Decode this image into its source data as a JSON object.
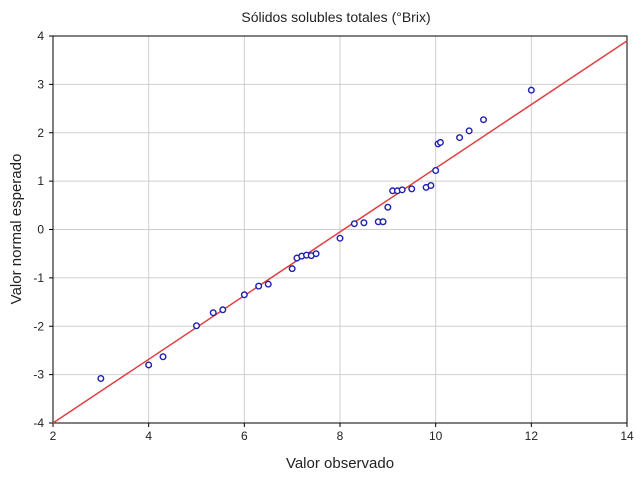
{
  "chart_data": {
    "type": "scatter",
    "title": "Sólidos solubles totales (°Brix)",
    "xlabel": "Valor observado",
    "ylabel": "Valor normal esperado",
    "xlim": [
      2,
      14
    ],
    "ylim": [
      -4,
      4
    ],
    "x_ticks": [
      2,
      4,
      6,
      8,
      10,
      12,
      14
    ],
    "y_ticks": [
      -4,
      -3,
      -2,
      -1,
      0,
      1,
      2,
      3,
      4
    ],
    "grid": true,
    "point_color": "#1f1fb0",
    "line_color": "#e04040",
    "reference_line": [
      [
        2,
        -4.0
      ],
      [
        14,
        3.9
      ]
    ],
    "points": [
      [
        3.0,
        -3.08
      ],
      [
        4.0,
        -2.8
      ],
      [
        4.3,
        -2.63
      ],
      [
        5.0,
        -1.99
      ],
      [
        5.35,
        -1.72
      ],
      [
        5.55,
        -1.66
      ],
      [
        6.0,
        -1.35
      ],
      [
        6.3,
        -1.17
      ],
      [
        6.5,
        -1.13
      ],
      [
        7.0,
        -0.81
      ],
      [
        7.1,
        -0.59
      ],
      [
        7.2,
        -0.55
      ],
      [
        7.3,
        -0.53
      ],
      [
        7.4,
        -0.54
      ],
      [
        7.5,
        -0.5
      ],
      [
        8.0,
        -0.18
      ],
      [
        8.3,
        0.12
      ],
      [
        8.5,
        0.14
      ],
      [
        8.8,
        0.16
      ],
      [
        8.9,
        0.16
      ],
      [
        9.0,
        0.46
      ],
      [
        9.1,
        0.8
      ],
      [
        9.2,
        0.8
      ],
      [
        9.3,
        0.82
      ],
      [
        9.5,
        0.84
      ],
      [
        9.8,
        0.87
      ],
      [
        9.9,
        0.91
      ],
      [
        10.0,
        1.22
      ],
      [
        10.05,
        1.77
      ],
      [
        10.1,
        1.8
      ],
      [
        10.5,
        1.9
      ],
      [
        10.7,
        2.04
      ],
      [
        11.0,
        2.27
      ],
      [
        12.0,
        2.88
      ]
    ]
  }
}
